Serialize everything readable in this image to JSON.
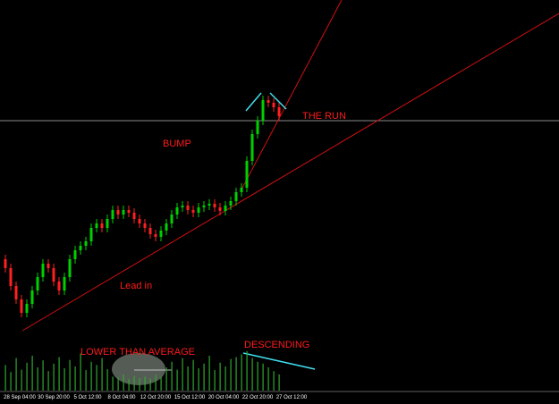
{
  "chart_data": {
    "type": "candlestick",
    "annotations": [
      "THE RUN",
      "BUMP",
      "Lead in",
      "LOWER THAN AVERAGE",
      "DESCENDING"
    ],
    "x_labels": [
      "28 Sep 04:00",
      "30 Sep 20:00",
      "5 Oct 12:00",
      "8 Oct 04:00",
      "12 Oct 20:00",
      "15 Oct 12:00",
      "20 Oct 04:00",
      "22 Oct 20:00",
      "27 Oct 12:00"
    ],
    "ylim": [
      20,
      400
    ],
    "up_color": "#00d000",
    "down_color": "#ff2020",
    "volume_color": "#2fa82f",
    "open": [
      110,
      100,
      80,
      65,
      50,
      60,
      75,
      90,
      105,
      100,
      85,
      75,
      90,
      110,
      120,
      125,
      130,
      145,
      150,
      145,
      155,
      165,
      160,
      165,
      162,
      155,
      150,
      145,
      138,
      135,
      142,
      150,
      160,
      168,
      170,
      165,
      162,
      168,
      170,
      172,
      168,
      164,
      170,
      175,
      185,
      190,
      220,
      250,
      265,
      288,
      285,
      280
    ],
    "high": [
      115,
      105,
      85,
      70,
      65,
      80,
      95,
      110,
      110,
      105,
      90,
      95,
      115,
      125,
      130,
      135,
      150,
      155,
      155,
      160,
      170,
      170,
      170,
      170,
      167,
      160,
      155,
      150,
      143,
      147,
      155,
      165,
      173,
      175,
      175,
      170,
      173,
      175,
      177,
      177,
      173,
      175,
      180,
      190,
      195,
      225,
      255,
      270,
      293,
      293,
      290,
      285
    ],
    "low": [
      95,
      75,
      60,
      45,
      45,
      55,
      70,
      85,
      95,
      80,
      70,
      70,
      85,
      105,
      115,
      120,
      125,
      140,
      140,
      140,
      150,
      155,
      155,
      157,
      150,
      145,
      140,
      133,
      130,
      130,
      137,
      145,
      155,
      163,
      160,
      157,
      157,
      163,
      165,
      163,
      159,
      159,
      165,
      170,
      180,
      185,
      215,
      245,
      260,
      280,
      275,
      265
    ],
    "close": [
      100,
      80,
      65,
      50,
      60,
      75,
      90,
      105,
      100,
      85,
      75,
      90,
      110,
      120,
      125,
      130,
      145,
      150,
      145,
      155,
      165,
      160,
      165,
      162,
      155,
      150,
      145,
      138,
      135,
      142,
      150,
      160,
      168,
      170,
      165,
      162,
      168,
      170,
      172,
      168,
      164,
      170,
      175,
      185,
      190,
      220,
      250,
      265,
      288,
      285,
      280,
      270
    ],
    "volume": [
      55,
      40,
      70,
      45,
      60,
      75,
      50,
      65,
      42,
      58,
      72,
      48,
      66,
      52,
      80,
      44,
      62,
      55,
      70,
      46,
      30,
      28,
      35,
      25,
      32,
      27,
      30,
      26,
      34,
      29,
      50,
      62,
      45,
      70,
      52,
      66,
      48,
      58,
      75,
      44,
      60,
      52,
      68,
      72,
      78,
      85,
      70,
      62,
      58,
      50,
      42,
      35
    ],
    "vlim": [
      0,
      100
    ]
  }
}
